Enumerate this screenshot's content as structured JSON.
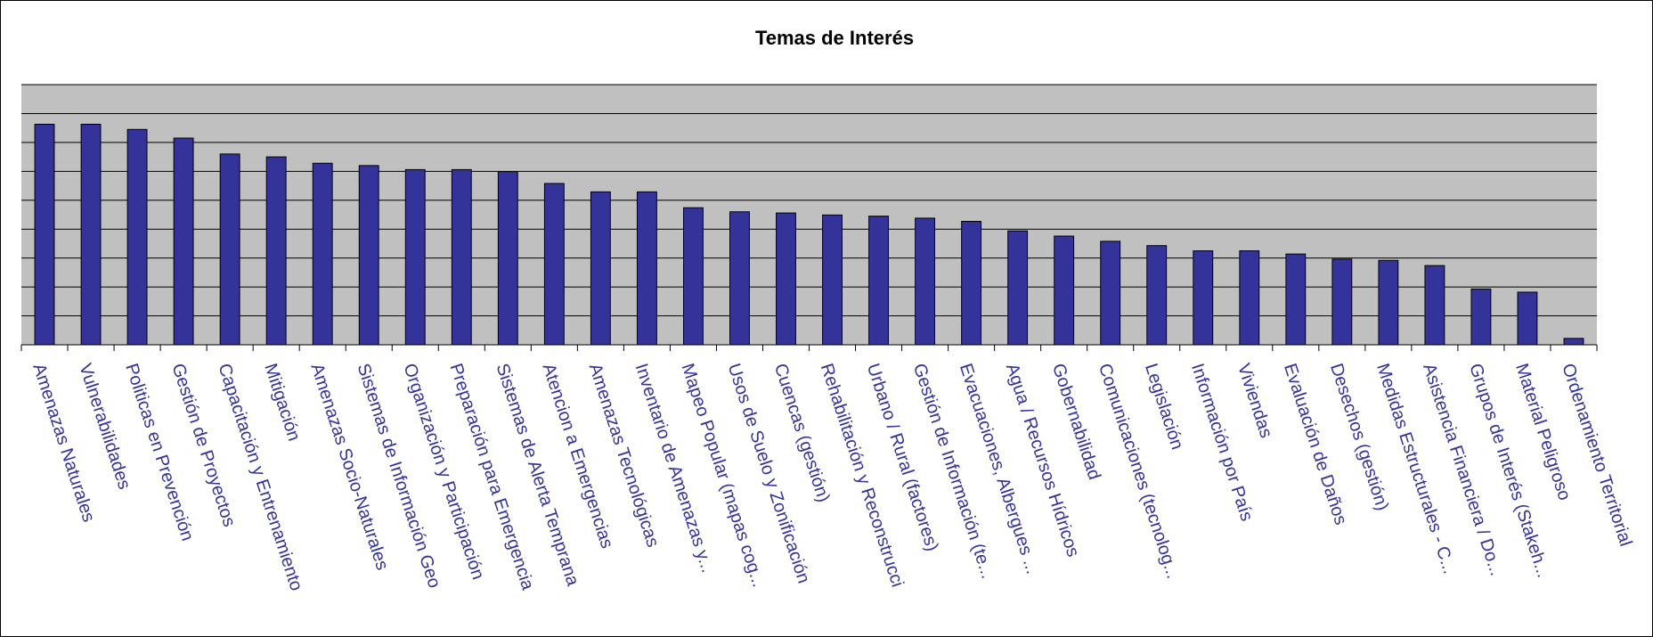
{
  "chart_data": {
    "type": "bar",
    "title": "Temas de Interés",
    "categories": [
      "Amenazas Naturales",
      "Vulnerabilidades",
      "Politicas en Prevención",
      "Gestión de Proyectos",
      "Capacitación y Entrenamiento",
      "Mitigación",
      "Amenazas Socio-Naturales",
      "Sistemas de Información Geo",
      "Organización y Participación",
      "Preparación para Emergencia",
      "Sistemas de Alerta Temprana",
      "Atencion a Emergencias",
      "Amenazas Tecnológicas",
      "Inventario de Amenazas y...",
      "Mapeo Popular (mapas cog...",
      "Usos de Suelo y Zonificación",
      "Cuencas (gestión)",
      "Rehabilitación y Reconstrucci",
      "Urbano / Rural (factores)",
      "Gestión de Información (te...",
      "Evacuaciones, Albergues ...",
      "Agua / Recursos Hídricos",
      "Gobernabilidad",
      "Comunicaciones (tecnolog...",
      "Legislación",
      "Información por País",
      "Viviendas",
      "Evaluación de Daños",
      "Desechos (gestión)",
      "Medidas Estructurales - C...",
      "Asistencia Financiera / Do...",
      "Grupos de Interés (Stakeh...",
      "Material Peligroso",
      "Ordenamiento Territorial"
    ],
    "values": [
      7.63,
      7.63,
      7.45,
      7.15,
      6.6,
      6.5,
      6.28,
      6.2,
      6.06,
      6.06,
      5.99,
      5.58,
      5.29,
      5.29,
      4.74,
      4.6,
      4.56,
      4.49,
      4.45,
      4.38,
      4.27,
      3.94,
      3.76,
      3.58,
      3.43,
      3.25,
      3.25,
      3.14,
      2.96,
      2.92,
      2.74,
      1.93,
      1.82,
      0.22
    ],
    "color": "#333399",
    "ylim": [
      0,
      9
    ],
    "yticks": [
      0,
      1,
      2,
      3,
      4,
      5,
      6,
      7,
      8,
      9
    ],
    "grid": true
  }
}
